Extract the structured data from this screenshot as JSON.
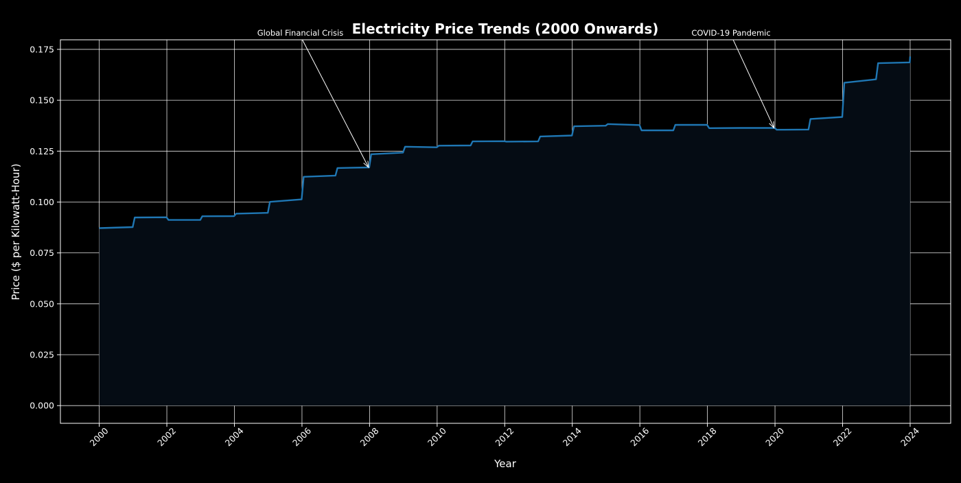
{
  "chart_data": {
    "type": "line",
    "title": "Electricity Price Trends (2000 Onwards)",
    "xlabel": "Year",
    "ylabel": "Price ($ per Kilowatt-Hour)",
    "xlim": [
      1998.85,
      2025.2
    ],
    "ylim": [
      -0.0087,
      0.1797
    ],
    "grid": true,
    "fill_under_line": true,
    "colors": {
      "background": "#000000",
      "line": "#1f77b4",
      "fill": "#050c14",
      "grid": "#ffffff",
      "text": "#ffffff"
    },
    "x_ticks": [
      {
        "value": 2000,
        "label": "2000"
      },
      {
        "value": 2002,
        "label": "2002"
      },
      {
        "value": 2004,
        "label": "2004"
      },
      {
        "value": 2006,
        "label": "2006"
      },
      {
        "value": 2008,
        "label": "2008"
      },
      {
        "value": 2010,
        "label": "2010"
      },
      {
        "value": 2012,
        "label": "2012"
      },
      {
        "value": 2014,
        "label": "2014"
      },
      {
        "value": 2016,
        "label": "2016"
      },
      {
        "value": 2018,
        "label": "2018"
      },
      {
        "value": 2020,
        "label": "2020"
      },
      {
        "value": 2022,
        "label": "2022"
      },
      {
        "value": 2024,
        "label": "2024"
      }
    ],
    "y_ticks": [
      {
        "value": 0.0,
        "label": "0.000"
      },
      {
        "value": 0.025,
        "label": "0.025"
      },
      {
        "value": 0.05,
        "label": "0.050"
      },
      {
        "value": 0.075,
        "label": "0.075"
      },
      {
        "value": 0.1,
        "label": "0.100"
      },
      {
        "value": 0.125,
        "label": "0.125"
      },
      {
        "value": 0.15,
        "label": "0.150"
      },
      {
        "value": 0.175,
        "label": "0.175"
      }
    ],
    "series": [
      {
        "points": [
          [
            2000.0,
            0.0872
          ],
          [
            2000.99,
            0.0877
          ],
          [
            2001.05,
            0.0924
          ],
          [
            2001.99,
            0.0925
          ],
          [
            2002.05,
            0.0912
          ],
          [
            2002.99,
            0.0912
          ],
          [
            2003.05,
            0.093
          ],
          [
            2003.99,
            0.0931
          ],
          [
            2004.05,
            0.0943
          ],
          [
            2004.99,
            0.0947
          ],
          [
            2005.05,
            0.1001
          ],
          [
            2005.99,
            0.1013
          ],
          [
            2006.05,
            0.1124
          ],
          [
            2006.99,
            0.113
          ],
          [
            2007.05,
            0.1167
          ],
          [
            2007.99,
            0.117
          ],
          [
            2008.05,
            0.1235
          ],
          [
            2008.99,
            0.1243
          ],
          [
            2009.05,
            0.1272
          ],
          [
            2009.99,
            0.1269
          ],
          [
            2010.05,
            0.1277
          ],
          [
            2010.99,
            0.1278
          ],
          [
            2011.05,
            0.1298
          ],
          [
            2011.99,
            0.1299
          ],
          [
            2012.05,
            0.1297
          ],
          [
            2012.99,
            0.1298
          ],
          [
            2013.05,
            0.1322
          ],
          [
            2013.99,
            0.1327
          ],
          [
            2014.05,
            0.1372
          ],
          [
            2014.99,
            0.1375
          ],
          [
            2015.05,
            0.1383
          ],
          [
            2015.99,
            0.1378
          ],
          [
            2016.05,
            0.1352
          ],
          [
            2016.99,
            0.1352
          ],
          [
            2017.05,
            0.1379
          ],
          [
            2017.99,
            0.1379
          ],
          [
            2018.05,
            0.1363
          ],
          [
            2018.99,
            0.1364
          ],
          [
            2019.05,
            0.1364
          ],
          [
            2019.99,
            0.1364
          ],
          [
            2020.05,
            0.1355
          ],
          [
            2020.99,
            0.1356
          ],
          [
            2021.05,
            0.1408
          ],
          [
            2021.99,
            0.1418
          ],
          [
            2022.05,
            0.1586
          ],
          [
            2022.99,
            0.1603
          ],
          [
            2023.05,
            0.1682
          ],
          [
            2023.99,
            0.1686
          ],
          [
            2024.0,
            0.1715
          ]
        ]
      }
    ],
    "annotations": [
      {
        "text": "Global Financial Crisis",
        "point": [
          2007.97,
          0.117
        ],
        "text_at": [
          2005.95,
          0.1831
        ]
      },
      {
        "text": "COVID-19 Pandemic",
        "point": [
          2019.97,
          0.1364
        ],
        "text_at": [
          2018.7,
          0.1831
        ]
      }
    ]
  }
}
